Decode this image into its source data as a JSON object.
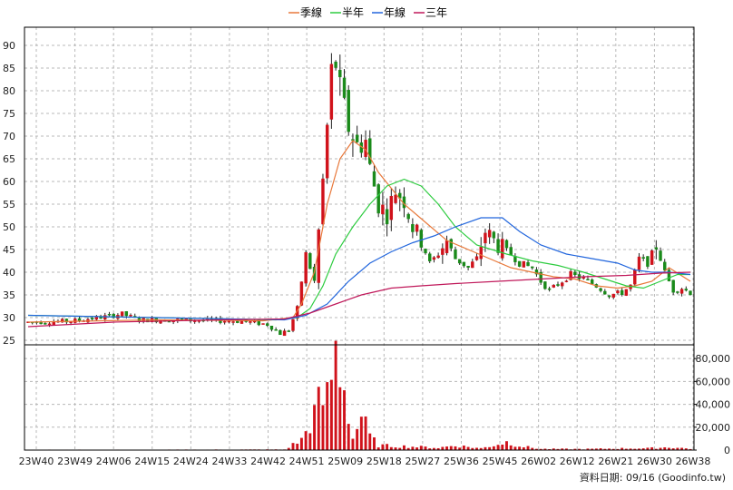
{
  "chart_data": {
    "type": "candlestick",
    "legend": {
      "position": "top-center",
      "items": [
        {
          "name": "季線",
          "color": "#e8783a"
        },
        {
          "name": "半年",
          "color": "#2ecc40"
        },
        {
          "name": "年線",
          "color": "#2266dd"
        },
        {
          "name": "三年",
          "color": "#c0185a"
        }
      ]
    },
    "grid": true,
    "price_axis": {
      "side": "left",
      "ylim": [
        24,
        94
      ],
      "ticks": [
        25,
        30,
        35,
        40,
        45,
        50,
        55,
        60,
        65,
        70,
        75,
        80,
        85,
        90
      ]
    },
    "volume_axis": {
      "side": "right",
      "ylim": [
        0,
        92000
      ],
      "ticks": [
        0,
        20000,
        40000,
        60000,
        80000
      ],
      "tick_labels": [
        "0",
        "20,000",
        "40,000",
        "60,000",
        "80,000"
      ]
    },
    "x_tick_labels": [
      "23W40",
      "23W49",
      "24W06",
      "24W15",
      "24W24",
      "24W33",
      "24W42",
      "24W51",
      "25W09",
      "25W18",
      "25W27",
      "25W36",
      "25W45",
      "26W02",
      "26W12",
      "26W21",
      "26W30",
      "26W38"
    ],
    "num_weeks": 156,
    "up_color": "#d0121b",
    "down_color": "#1a8a1a",
    "ma_series": [
      {
        "name": "季線",
        "color": "#e8783a",
        "points": [
          [
            0,
            29
          ],
          [
            30,
            29.5
          ],
          [
            55,
            29.3
          ],
          [
            62,
            30
          ],
          [
            64,
            33
          ],
          [
            67,
            40
          ],
          [
            70,
            55
          ],
          [
            73,
            65
          ],
          [
            76,
            69
          ],
          [
            79,
            67
          ],
          [
            82,
            62
          ],
          [
            88,
            55
          ],
          [
            93,
            51
          ],
          [
            98,
            47
          ],
          [
            103,
            45
          ],
          [
            108,
            43
          ],
          [
            113,
            41
          ],
          [
            118,
            40
          ],
          [
            123,
            39
          ],
          [
            128,
            38.5
          ],
          [
            133,
            37
          ],
          [
            138,
            36.5
          ],
          [
            142,
            37
          ],
          [
            146,
            38
          ],
          [
            150,
            41
          ],
          [
            155,
            38
          ]
        ]
      },
      {
        "name": "半年",
        "color": "#2ecc40",
        "points": [
          [
            0,
            30.5
          ],
          [
            30,
            30
          ],
          [
            58,
            29.5
          ],
          [
            63,
            30
          ],
          [
            66,
            32
          ],
          [
            69,
            37
          ],
          [
            72,
            44
          ],
          [
            76,
            50
          ],
          [
            80,
            55
          ],
          [
            84,
            59
          ],
          [
            88,
            60.5
          ],
          [
            92,
            59
          ],
          [
            96,
            55
          ],
          [
            100,
            50
          ],
          [
            105,
            46
          ],
          [
            112,
            44
          ],
          [
            118,
            42.5
          ],
          [
            124,
            41.5
          ],
          [
            130,
            40
          ],
          [
            135,
            38.5
          ],
          [
            140,
            37
          ],
          [
            144,
            36.5
          ],
          [
            148,
            38
          ],
          [
            152,
            39.5
          ],
          [
            155,
            39.5
          ]
        ]
      },
      {
        "name": "年線",
        "color": "#2266dd",
        "points": [
          [
            0,
            30.5
          ],
          [
            30,
            30
          ],
          [
            60,
            29.5
          ],
          [
            65,
            30.5
          ],
          [
            70,
            33
          ],
          [
            75,
            38
          ],
          [
            80,
            42
          ],
          [
            85,
            44.5
          ],
          [
            90,
            46.5
          ],
          [
            95,
            48
          ],
          [
            100,
            50
          ],
          [
            106,
            52
          ],
          [
            111,
            52
          ],
          [
            115,
            49
          ],
          [
            120,
            46
          ],
          [
            126,
            44
          ],
          [
            132,
            43
          ],
          [
            138,
            42
          ],
          [
            142,
            40.5
          ],
          [
            146,
            40
          ],
          [
            150,
            40
          ],
          [
            155,
            39.5
          ]
        ]
      },
      {
        "name": "三年",
        "color": "#c0185a",
        "points": [
          [
            0,
            28
          ],
          [
            20,
            29
          ],
          [
            45,
            29.5
          ],
          [
            60,
            29.7
          ],
          [
            66,
            31
          ],
          [
            72,
            33
          ],
          [
            78,
            35
          ],
          [
            85,
            36.5
          ],
          [
            92,
            37
          ],
          [
            100,
            37.5
          ],
          [
            110,
            38
          ],
          [
            120,
            38.5
          ],
          [
            130,
            39
          ],
          [
            140,
            39.3
          ],
          [
            148,
            39.8
          ],
          [
            155,
            40
          ]
        ]
      }
    ],
    "price_anchors": [
      [
        0,
        29
      ],
      [
        10,
        29.2
      ],
      [
        18,
        30.2
      ],
      [
        22,
        30.8
      ],
      [
        26,
        29.5
      ],
      [
        32,
        29.5
      ],
      [
        40,
        29.4
      ],
      [
        50,
        29.2
      ],
      [
        56,
        28.5
      ],
      [
        59,
        26.5
      ],
      [
        61,
        27.2
      ],
      [
        63,
        32
      ],
      [
        65,
        44
      ],
      [
        67,
        38
      ],
      [
        69,
        60
      ],
      [
        70,
        72
      ],
      [
        71,
        84
      ],
      [
        72,
        86
      ],
      [
        73,
        80
      ],
      [
        75,
        72
      ],
      [
        77,
        68
      ],
      [
        79,
        69
      ],
      [
        80,
        63
      ],
      [
        82,
        55
      ],
      [
        84,
        53
      ],
      [
        86,
        58
      ],
      [
        88,
        56
      ],
      [
        90,
        50
      ],
      [
        92,
        47
      ],
      [
        94,
        42
      ],
      [
        96,
        44
      ],
      [
        98,
        47
      ],
      [
        100,
        43
      ],
      [
        103,
        41
      ],
      [
        105,
        43
      ],
      [
        107,
        49
      ],
      [
        110,
        46
      ],
      [
        113,
        44
      ],
      [
        115,
        42
      ],
      [
        118,
        41
      ],
      [
        120,
        38
      ],
      [
        122,
        36
      ],
      [
        125,
        38
      ],
      [
        127,
        39.5
      ],
      [
        130,
        38.5
      ],
      [
        133,
        37
      ],
      [
        136,
        35
      ],
      [
        139,
        35.5
      ],
      [
        141,
        37
      ],
      [
        143,
        43
      ],
      [
        145,
        42
      ],
      [
        147,
        46
      ],
      [
        149,
        40
      ],
      [
        151,
        36
      ],
      [
        153,
        36.5
      ],
      [
        155,
        35.5
      ]
    ],
    "volume_anchors": [
      [
        0,
        300
      ],
      [
        30,
        300
      ],
      [
        60,
        500
      ],
      [
        64,
        9000
      ],
      [
        66,
        23000
      ],
      [
        68,
        40000
      ],
      [
        70,
        46000
      ],
      [
        72,
        86000
      ],
      [
        74,
        55000
      ],
      [
        76,
        10000
      ],
      [
        78,
        30000
      ],
      [
        80,
        12000
      ],
      [
        82,
        4000
      ],
      [
        90,
        3000
      ],
      [
        96,
        2000
      ],
      [
        100,
        4000
      ],
      [
        106,
        1500
      ],
      [
        112,
        7000
      ],
      [
        116,
        3000
      ],
      [
        120,
        1000
      ],
      [
        130,
        900
      ],
      [
        140,
        1500
      ],
      [
        145,
        1500
      ],
      [
        150,
        2500
      ],
      [
        155,
        1200
      ]
    ]
  },
  "footer": {
    "source_text": "資料日期: 09/16   (Goodinfo.tw)"
  }
}
